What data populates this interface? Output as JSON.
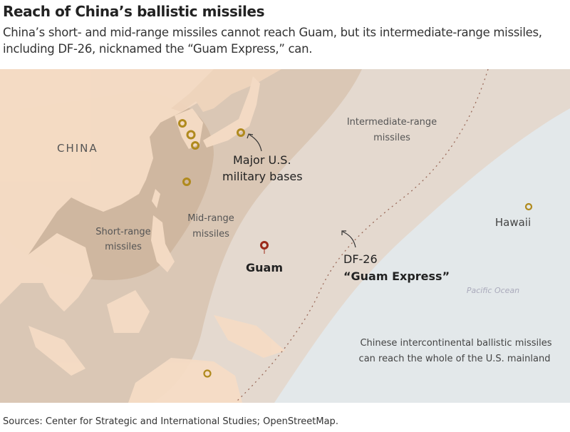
{
  "title": "Reach of China’s ballistic missiles",
  "subtitle": "China’s short- and mid-range missiles cannot reach Guam, but its intermediate-range missiles, including DF-26, nicknamed the “Guam Express,” can.",
  "map": {
    "labels": {
      "china": "CHINA",
      "bases_line1": "Major U.S.",
      "bases_line2": "military bases",
      "short_line1": "Short-range",
      "short_line2": "missiles",
      "mid_line1": "Mid-range",
      "mid_line2": "missiles",
      "inter_line1": "Intermediate-range",
      "inter_line2": "missiles",
      "guam": "Guam",
      "df26_line1": "DF-26",
      "df26_line2": "“Guam Express”",
      "hawaii": "Hawaii",
      "pacific": "Pacific Ocean",
      "icbm_line1": "Chinese intercontinental ballistic missiles",
      "icbm_line2": "can reach the whole of the U.S. mainland"
    },
    "colors": {
      "ocean": "#e3e8ea",
      "intermediate": "#e4d9cf",
      "mid": "#dac7b5",
      "short": "#cfb7a0",
      "land": "#f5dcc5",
      "base_marker": "#b08a1e",
      "guam_marker": "#9b2a1a"
    }
  },
  "source": "Sources: Center for Strategic and International Studies; OpenStreetMap."
}
